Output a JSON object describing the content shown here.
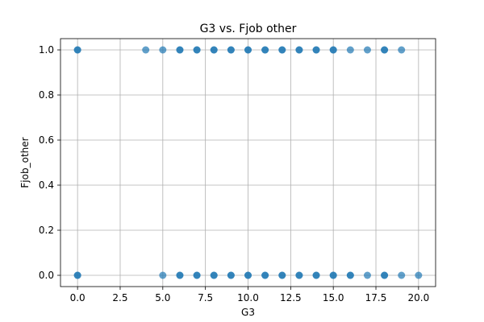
{
  "chart_data": {
    "type": "scatter",
    "title": "G3 vs. Fjob other",
    "xlabel": "G3",
    "ylabel": "Fjob_other",
    "xlim": [
      -1,
      21
    ],
    "ylim": [
      -0.05,
      1.05
    ],
    "xticks": [
      0.0,
      2.5,
      5.0,
      7.5,
      10.0,
      12.5,
      15.0,
      17.5,
      20.0
    ],
    "xtick_labels": [
      "0.0",
      "2.5",
      "5.0",
      "7.5",
      "10.0",
      "12.5",
      "15.0",
      "17.5",
      "20.0"
    ],
    "yticks": [
      0.0,
      0.2,
      0.4,
      0.6,
      0.8,
      1.0
    ],
    "ytick_labels": [
      "0.0",
      "0.2",
      "0.4",
      "0.6",
      "0.8",
      "1.0"
    ],
    "grid": true,
    "marker_color": "#1f77b4",
    "marker_alpha": 0.7,
    "series": [
      {
        "points": [
          [
            0,
            1
          ],
          [
            0,
            1
          ],
          [
            4,
            1
          ],
          [
            5,
            1
          ],
          [
            6,
            1
          ],
          [
            6,
            1
          ],
          [
            7,
            1
          ],
          [
            7,
            1
          ],
          [
            8,
            1
          ],
          [
            8,
            1
          ],
          [
            9,
            1
          ],
          [
            9,
            1
          ],
          [
            10,
            1
          ],
          [
            10,
            1
          ],
          [
            11,
            1
          ],
          [
            11,
            1
          ],
          [
            12,
            1
          ],
          [
            12,
            1
          ],
          [
            13,
            1
          ],
          [
            13,
            1
          ],
          [
            14,
            1
          ],
          [
            14,
            1
          ],
          [
            15,
            1
          ],
          [
            15,
            1
          ],
          [
            16,
            1
          ],
          [
            17,
            1
          ],
          [
            18,
            1
          ],
          [
            18,
            1
          ],
          [
            19,
            1
          ],
          [
            0,
            0
          ],
          [
            0,
            0
          ],
          [
            5,
            0
          ],
          [
            6,
            0
          ],
          [
            6,
            0
          ],
          [
            7,
            0
          ],
          [
            7,
            0
          ],
          [
            8,
            0
          ],
          [
            8,
            0
          ],
          [
            9,
            0
          ],
          [
            9,
            0
          ],
          [
            10,
            0
          ],
          [
            10,
            0
          ],
          [
            11,
            0
          ],
          [
            11,
            0
          ],
          [
            12,
            0
          ],
          [
            12,
            0
          ],
          [
            13,
            0
          ],
          [
            13,
            0
          ],
          [
            14,
            0
          ],
          [
            14,
            0
          ],
          [
            15,
            0
          ],
          [
            15,
            0
          ],
          [
            16,
            0
          ],
          [
            16,
            0
          ],
          [
            17,
            0
          ],
          [
            18,
            0
          ],
          [
            18,
            0
          ],
          [
            19,
            0
          ],
          [
            20,
            0
          ]
        ]
      }
    ]
  }
}
